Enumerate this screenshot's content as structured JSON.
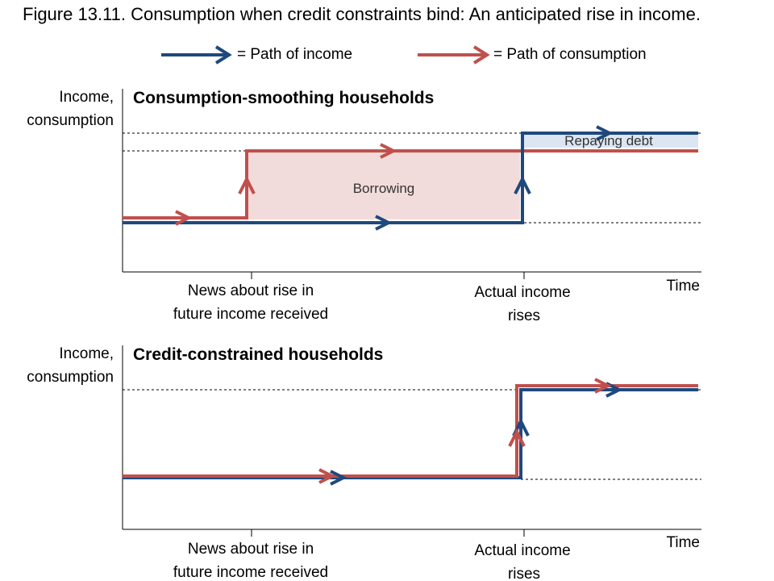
{
  "title": "Figure 13.11. Consumption when credit constraints bind: An anticipated rise in income.",
  "legend": [
    {
      "label": "= Path of income"
    },
    {
      "label": "= Path of consumption"
    }
  ],
  "panels": [
    {
      "title": "Consumption-smoothing households",
      "y_label": [
        "Income,",
        "consumption"
      ],
      "x_labels": [
        [
          "News about rise in",
          "future income received"
        ],
        [
          "Actual income",
          "rises"
        ]
      ],
      "x_axis_label": "Time",
      "annotations": [
        "Borrowing",
        "Repaying debt"
      ]
    },
    {
      "title": "Credit-constrained households",
      "y_label": [
        "Income,",
        "consumption"
      ],
      "x_labels": [
        [
          "News about rise in",
          "future income received"
        ],
        [
          "Actual income",
          "rises"
        ]
      ],
      "x_axis_label": "Time"
    }
  ]
}
